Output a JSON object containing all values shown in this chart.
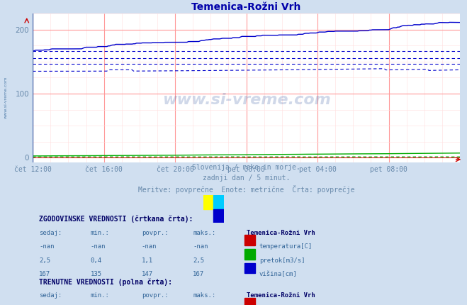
{
  "title": "Temenica-Rožni Vrh",
  "title_color": "#0000aa",
  "bg_color": "#d0dff0",
  "plot_bg_color": "#ffffff",
  "grid_color_major": "#ff9999",
  "grid_color_minor": "#ffdddd",
  "xlabel_color": "#6688aa",
  "xticklabels": [
    "čet 12:00",
    "čet 16:00",
    "čet 20:00",
    "pet 00:00",
    "pet 04:00",
    "pet 08:00"
  ],
  "xtick_positions": [
    0,
    48,
    96,
    144,
    192,
    240
  ],
  "yticks": [
    0,
    100,
    200
  ],
  "ylim": [
    -8,
    225
  ],
  "xlim": [
    0,
    288
  ],
  "n_points": 289,
  "color_height": "#0000cc",
  "color_flow": "#00aa00",
  "color_temp": "#cc0000",
  "watermark_color": "#4466aa",
  "arrow_color": "#cc0000",
  "table_header_color": "#000066",
  "table_value_color": "#336699",
  "legend_title_color": "#000066",
  "table_label_color": "#336699",
  "sivreme_side_color": "#336699"
}
